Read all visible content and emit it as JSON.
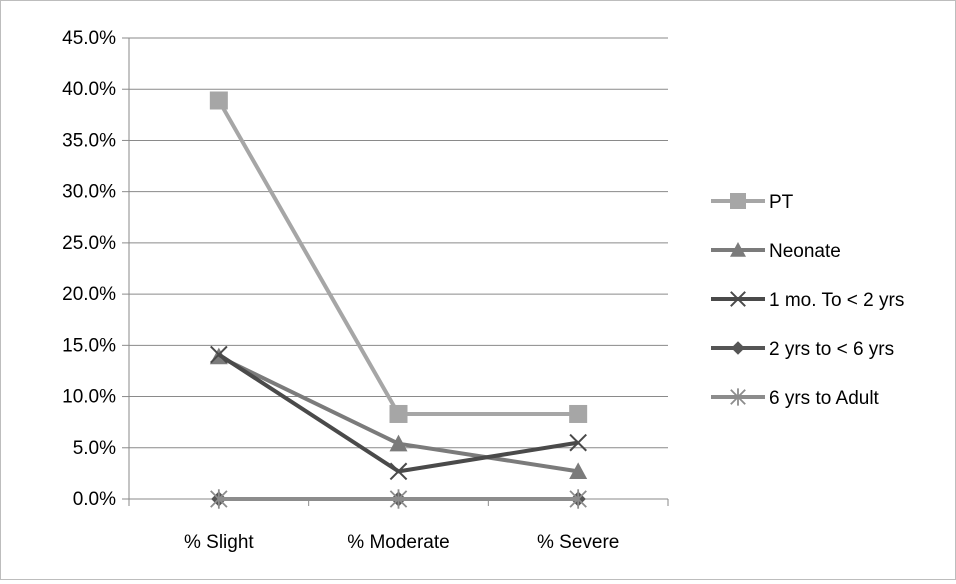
{
  "chart_data": {
    "type": "line",
    "categories": [
      "% Slight",
      "% Moderate",
      "% Severe"
    ],
    "ylim": [
      0,
      0.45
    ],
    "y_ticks": [
      "0.0%",
      "5.0%",
      "10.0%",
      "15.0%",
      "20.0%",
      "25.0%",
      "30.0%",
      "35.0%",
      "40.0%",
      "45.0%"
    ],
    "y_format": "percent",
    "grid": true,
    "legend_position": "right",
    "series": [
      {
        "name": "PT",
        "values": [
          0.389,
          0.083,
          0.083
        ],
        "color": "#a6a6a6",
        "marker": "square"
      },
      {
        "name": "Neonate",
        "values": [
          0.139,
          0.054,
          0.027
        ],
        "color": "#7b7b7b",
        "marker": "triangle"
      },
      {
        "name": "1 mo. To < 2 yrs",
        "values": [
          0.141,
          0.027,
          0.055
        ],
        "color": "#4a4a4a",
        "marker": "x"
      },
      {
        "name": "2 yrs to < 6 yrs",
        "values": [
          0.0,
          0.0,
          0.0
        ],
        "color": "#555555",
        "marker": "diamond"
      },
      {
        "name": "6 yrs to Adult",
        "values": [
          0.0,
          0.0,
          0.0
        ],
        "color": "#8c8c8c",
        "marker": "star"
      }
    ]
  }
}
